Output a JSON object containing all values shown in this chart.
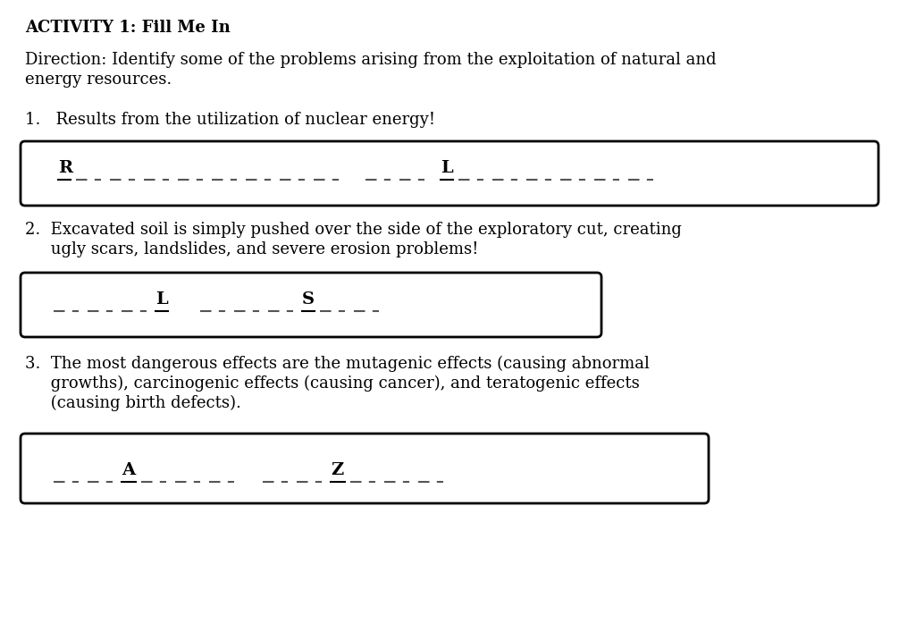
{
  "title": "ACTIVITY 1: Fill Me In",
  "direction_line1": "Direction: Identify some of the problems arising from the exploitation of natural and",
  "direction_line2": "energy resources.",
  "item1_text": "1.   Results from the utilization of nuclear energy!",
  "item2_line1": "2.  Excavated soil is simply pushed over the side of the exploratory cut, creating",
  "item2_line2": "     ugly scars, landslides, and severe erosion problems!",
  "item3_line1": "3.  The most dangerous effects are the mutagenic effects (causing abnormal",
  "item3_line2": "     growths), carcinogenic effects (causing cancer), and teratogenic effects",
  "item3_line3": "     (causing birth defects).",
  "bg_color": "#ffffff",
  "text_color": "#000000",
  "font_family": "serif",
  "font_size": 13,
  "title_font_size": 13
}
